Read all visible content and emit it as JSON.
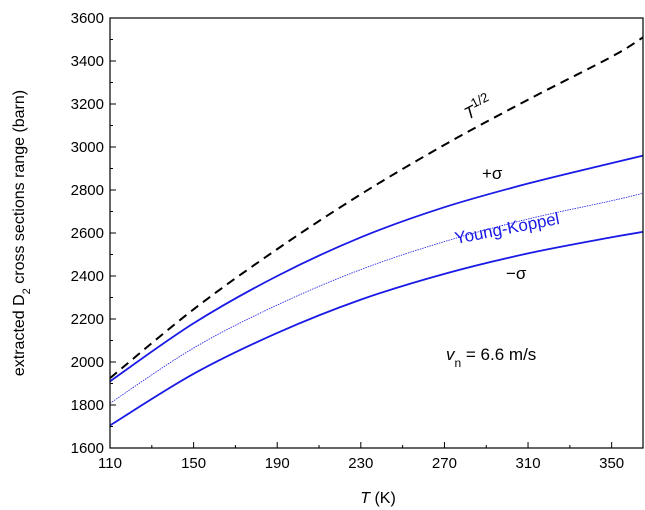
{
  "chart_data": {
    "type": "line",
    "xlabel": {
      "italic": "T",
      "rest": " (K)"
    },
    "ylabel": {
      "pre": "extracted D",
      "sub": "2",
      "post": " cross sections range (barn)"
    },
    "xlim": [
      110,
      365
    ],
    "ylim": [
      1600,
      3600
    ],
    "xticks": [
      110,
      150,
      190,
      230,
      270,
      310,
      350
    ],
    "yticks": [
      1600,
      1800,
      2000,
      2200,
      2400,
      2600,
      2800,
      3000,
      3200,
      3400,
      3600
    ],
    "grid": false,
    "series": [
      {
        "label": "T^1/2",
        "style": "dashed",
        "color": "#000000",
        "x": [
          110,
          150,
          190,
          230,
          270,
          310,
          350,
          365
        ],
        "y": [
          1925,
          2245,
          2525,
          2780,
          3010,
          3220,
          3420,
          3510
        ]
      },
      {
        "label": "+σ",
        "style": "solid",
        "color": "#1a1ae6",
        "x": [
          110,
          150,
          190,
          230,
          270,
          310,
          350,
          365
        ],
        "y": [
          1910,
          2180,
          2400,
          2580,
          2720,
          2830,
          2925,
          2960
        ]
      },
      {
        "label": "Young-Koppel",
        "style": "thin",
        "color": "#1a1ae6",
        "x": [
          110,
          150,
          190,
          230,
          270,
          310,
          350,
          365
        ],
        "y": [
          1808,
          2065,
          2265,
          2430,
          2560,
          2665,
          2750,
          2785
        ]
      },
      {
        "label": "−σ",
        "style": "solid",
        "color": "#1a1ae6",
        "x": [
          110,
          150,
          190,
          230,
          270,
          310,
          350,
          365
        ],
        "y": [
          1705,
          1945,
          2135,
          2290,
          2410,
          2505,
          2580,
          2605
        ]
      }
    ],
    "annotations": {
      "sqrt_label": {
        "base": "T",
        "exp": "1/2"
      },
      "plus_sigma": "+σ",
      "minus_sigma": "−σ",
      "model": "Young-Koppel",
      "vn": {
        "var": "v",
        "sub": "n",
        "rest": " = 6.6 m/s"
      }
    },
    "colors": {
      "model": "#1a1ae6",
      "reference": "#000000"
    }
  }
}
